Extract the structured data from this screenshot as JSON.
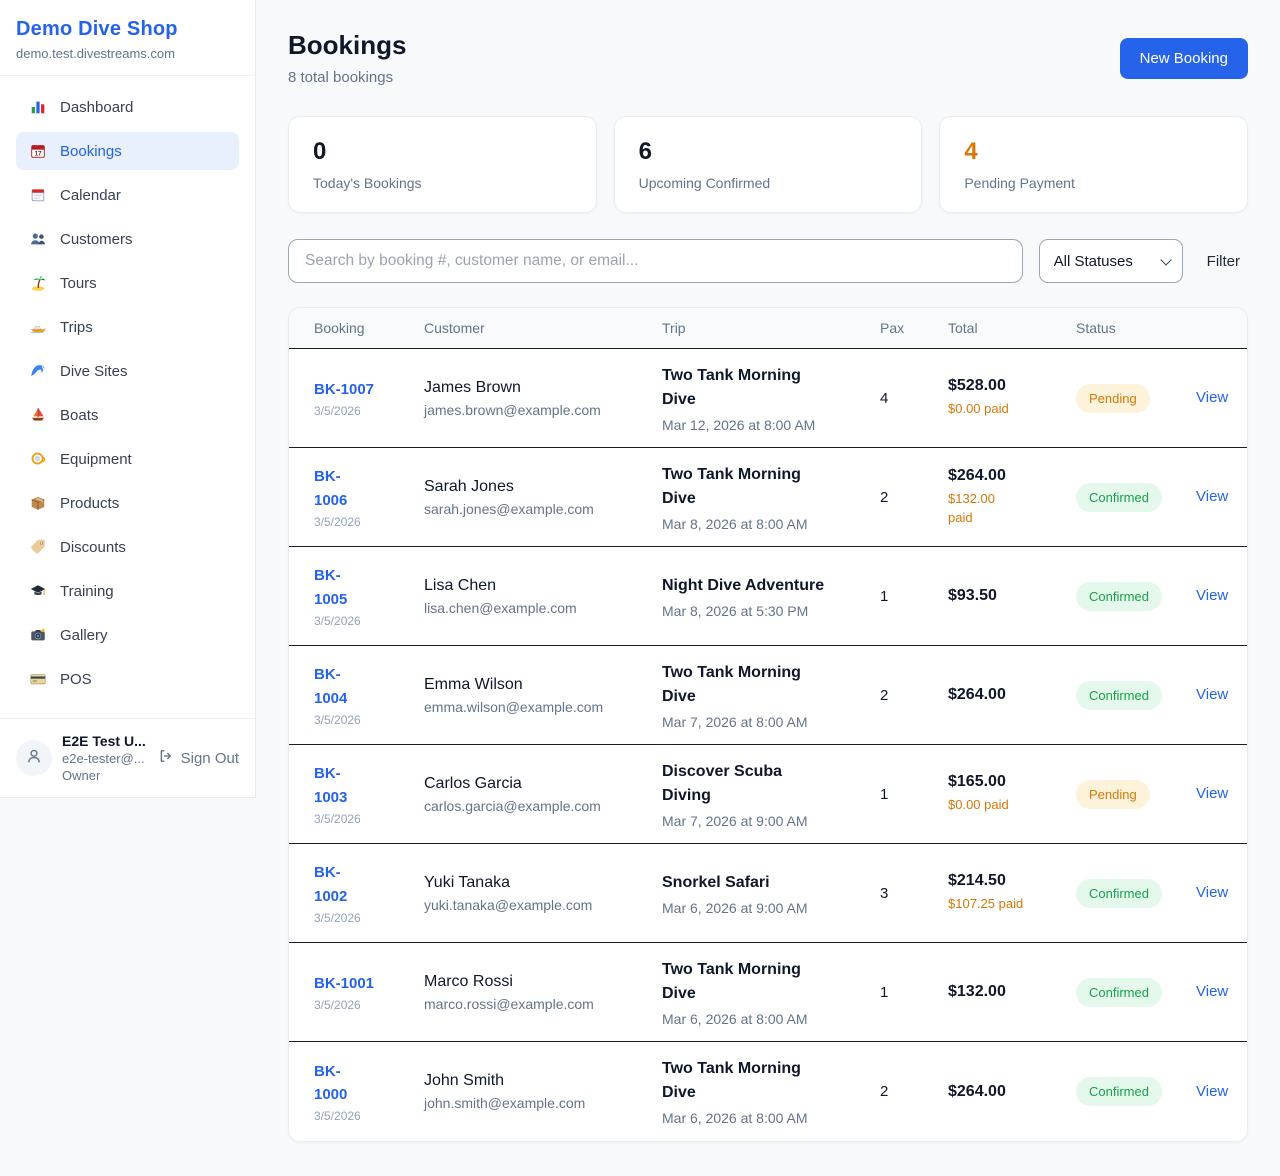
{
  "sidebar": {
    "brand": "Demo Dive Shop",
    "domain": "demo.test.divestreams.com",
    "items": [
      {
        "label": "Dashboard",
        "icon": "bar-chart-icon",
        "active": false
      },
      {
        "label": "Bookings",
        "icon": "bookings-calendar-icon",
        "active": true
      },
      {
        "label": "Calendar",
        "icon": "calendar-icon",
        "active": false
      },
      {
        "label": "Customers",
        "icon": "people-icon",
        "active": false
      },
      {
        "label": "Tours",
        "icon": "palm-island-icon",
        "active": false
      },
      {
        "label": "Trips",
        "icon": "speedboat-icon",
        "active": false
      },
      {
        "label": "Dive Sites",
        "icon": "wave-icon",
        "active": false
      },
      {
        "label": "Boats",
        "icon": "sailboat-icon",
        "active": false
      },
      {
        "label": "Equipment",
        "icon": "dive-mask-icon",
        "active": false
      },
      {
        "label": "Products",
        "icon": "package-icon",
        "active": false
      },
      {
        "label": "Discounts",
        "icon": "tag-icon",
        "active": false
      },
      {
        "label": "Training",
        "icon": "graduation-cap-icon",
        "active": false
      },
      {
        "label": "Gallery",
        "icon": "camera-icon",
        "active": false
      },
      {
        "label": "POS",
        "icon": "credit-card-icon",
        "active": false
      }
    ],
    "user": {
      "name": "E2E Test U...",
      "email": "e2e-tester@...",
      "role": "Owner",
      "signout_label": "Sign Out"
    }
  },
  "header": {
    "title": "Bookings",
    "subtitle": "8 total bookings",
    "new_booking_label": "New Booking"
  },
  "stats": [
    {
      "value": "0",
      "label": "Today's Bookings",
      "color": "#0f172a"
    },
    {
      "value": "6",
      "label": "Upcoming Confirmed",
      "color": "#0f172a"
    },
    {
      "value": "4",
      "label": "Pending Payment",
      "color": "#d97706"
    }
  ],
  "filters": {
    "search_placeholder": "Search by booking #, customer name, or email...",
    "status_selected": "All Statuses",
    "filter_label": "Filter"
  },
  "table": {
    "columns": [
      "Booking",
      "Customer",
      "Trip",
      "Pax",
      "Total",
      "Status",
      ""
    ],
    "view_label": "View",
    "rows": [
      {
        "id": "BK-1007",
        "date": "3/5/2026",
        "customer": "James Brown",
        "email": "james.brown@example.com",
        "trip": "Two Tank Morning\nDive",
        "trip_when": "Mar 12, 2026 at 8:00 AM",
        "pax": "4",
        "total": "$528.00",
        "paid": "$0.00 paid",
        "status": "Pending"
      },
      {
        "id": "BK-\n1006",
        "date": "3/5/2026",
        "customer": "Sarah Jones",
        "email": "sarah.jones@example.com",
        "trip": "Two Tank Morning\nDive",
        "trip_when": "Mar 8, 2026 at 8:00 AM",
        "pax": "2",
        "total": "$264.00",
        "paid": "$132.00\npaid",
        "status": "Confirmed"
      },
      {
        "id": "BK-\n1005",
        "date": "3/5/2026",
        "customer": "Lisa Chen",
        "email": "lisa.chen@example.com",
        "trip": "Night Dive Adventure",
        "trip_when": "Mar 8, 2026 at 5:30 PM",
        "pax": "1",
        "total": "$93.50",
        "paid": "",
        "status": "Confirmed"
      },
      {
        "id": "BK-\n1004",
        "date": "3/5/2026",
        "customer": "Emma Wilson",
        "email": "emma.wilson@example.com",
        "trip": "Two Tank Morning\nDive",
        "trip_when": "Mar 7, 2026 at 8:00 AM",
        "pax": "2",
        "total": "$264.00",
        "paid": "",
        "status": "Confirmed"
      },
      {
        "id": "BK-\n1003",
        "date": "3/5/2026",
        "customer": "Carlos Garcia",
        "email": "carlos.garcia@example.com",
        "trip": "Discover Scuba\nDiving",
        "trip_when": "Mar 7, 2026 at 9:00 AM",
        "pax": "1",
        "total": "$165.00",
        "paid": "$0.00 paid",
        "status": "Pending"
      },
      {
        "id": "BK-\n1002",
        "date": "3/5/2026",
        "customer": "Yuki Tanaka",
        "email": "yuki.tanaka@example.com",
        "trip": "Snorkel Safari",
        "trip_when": "Mar 6, 2026 at 9:00 AM",
        "pax": "3",
        "total": "$214.50",
        "paid": "$107.25 paid",
        "status": "Confirmed"
      },
      {
        "id": "BK-1001",
        "date": "3/5/2026",
        "customer": "Marco Rossi",
        "email": "marco.rossi@example.com",
        "trip": "Two Tank Morning\nDive",
        "trip_when": "Mar 6, 2026 at 8:00 AM",
        "pax": "1",
        "total": "$132.00",
        "paid": "",
        "status": "Confirmed"
      },
      {
        "id": "BK-\n1000",
        "date": "3/5/2026",
        "customer": "John Smith",
        "email": "john.smith@example.com",
        "trip": "Two Tank Morning\nDive",
        "trip_when": "Mar 6, 2026 at 8:00 AM",
        "pax": "2",
        "total": "$264.00",
        "paid": "",
        "status": "Confirmed"
      }
    ]
  },
  "colors": {
    "accent": "#2563eb",
    "page_bg": "#f7f9fb",
    "pending_text": "#d97706",
    "pending_bg": "#fdf3da",
    "confirmed_text": "#16a34a",
    "confirmed_bg": "#e4f8ec"
  }
}
